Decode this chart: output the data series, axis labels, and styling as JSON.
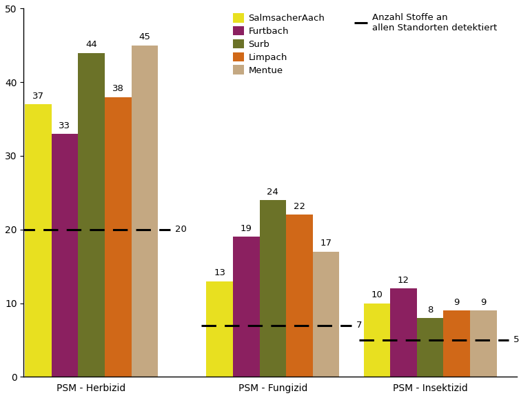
{
  "groups": [
    "PSM - Herbizid",
    "PSM - Fungizid",
    "PSM - Insektizid"
  ],
  "series": [
    "SalmsacherAach",
    "Furtbach",
    "Surb",
    "Limpach",
    "Mentue"
  ],
  "colors": [
    "#e8e020",
    "#8b2060",
    "#6b7228",
    "#d06818",
    "#c4a882"
  ],
  "values": [
    [
      37,
      33,
      44,
      38,
      45
    ],
    [
      13,
      19,
      24,
      22,
      17
    ],
    [
      10,
      12,
      8,
      9,
      9
    ]
  ],
  "dashed_lines": [
    20,
    7,
    5
  ],
  "dashed_labels": [
    "20",
    "7",
    "5"
  ],
  "ylim": [
    0,
    50
  ],
  "yticks": [
    0,
    10,
    20,
    30,
    40,
    50
  ],
  "legend_dashed_label": "Anzahl Stoffe an\nallen Standorten detektiert",
  "background_color": "#ffffff",
  "bar_width": 0.11,
  "group_positions": [
    0.32,
    1.07,
    1.72
  ]
}
